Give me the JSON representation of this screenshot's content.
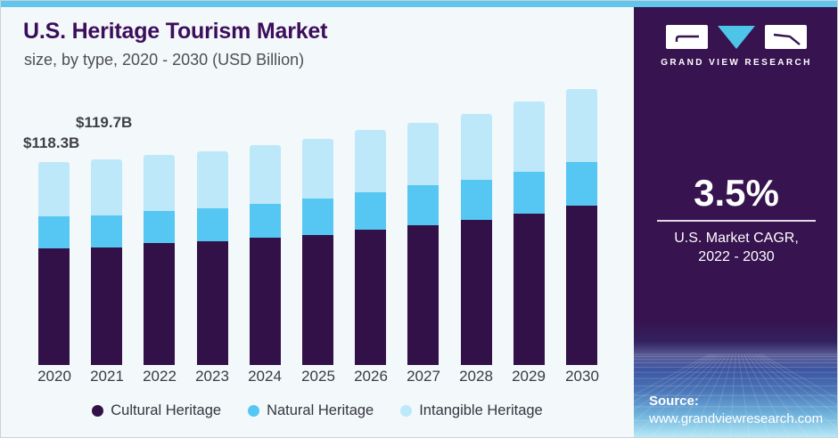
{
  "header": {
    "title": "U.S. Heritage Tourism Market",
    "subtitle": "size, by type, 2020 - 2030 (USD Billion)"
  },
  "chart_data": {
    "type": "bar",
    "stacked": true,
    "title": "U.S. Heritage Tourism Market size, by type, 2020 - 2030 (USD Billion)",
    "categories": [
      "2020",
      "2021",
      "2022",
      "2023",
      "2024",
      "2025",
      "2026",
      "2027",
      "2028",
      "2029",
      "2030"
    ],
    "series": [
      {
        "name": "Cultural Heritage",
        "color": "#321149",
        "values": [
          68.0,
          68.3,
          71.1,
          72.1,
          74.2,
          75.7,
          78.9,
          81.5,
          84.6,
          88.2,
          92.9
        ]
      },
      {
        "name": "Natural Heritage",
        "color": "#56c7f2",
        "values": [
          18.7,
          18.7,
          18.7,
          19.2,
          19.7,
          21.3,
          21.8,
          23.3,
          23.3,
          24.4,
          25.4
        ]
      },
      {
        "name": "Intangible Heritage",
        "color": "#bde8f9",
        "values": [
          31.6,
          32.7,
          32.7,
          33.2,
          34.5,
          35.0,
          36.3,
          36.3,
          38.4,
          41.0,
          42.5
        ]
      }
    ],
    "totals": [
      118.3,
      119.7,
      122.5,
      124.5,
      128.4,
      132.0,
      137.0,
      141.1,
      146.3,
      153.6,
      160.8
    ],
    "annotations": [
      {
        "category": "2020",
        "label": "$118.3B"
      },
      {
        "category": "2021",
        "label": "$119.7B"
      }
    ],
    "unit": "USD Billion",
    "ylim": [
      0,
      165
    ],
    "grid": false,
    "legend_position": "bottom"
  },
  "sidebar": {
    "brand": "GRAND VIEW RESEARCH",
    "cagr_value": "3.5%",
    "cagr_label_line1": "U.S. Market CAGR,",
    "cagr_label_line2": "2022 - 2030",
    "source_label": "Source:",
    "source_url": "www.grandviewresearch.com"
  },
  "colors": {
    "top_bar": "#62c5ec",
    "chart_background": "#f3f8fb",
    "sidebar_background": "#371350",
    "title_text": "#3c0e5a",
    "logo_triangle": "#4fc4e9"
  }
}
